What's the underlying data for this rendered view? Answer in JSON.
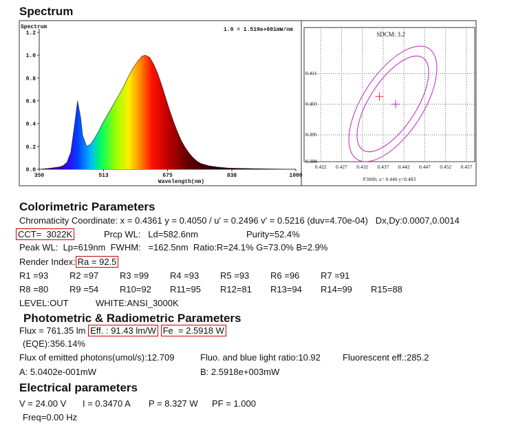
{
  "title": "Spectrum",
  "spectrum": {
    "type": "area",
    "title": "Spectrum",
    "note": "1.0 = 1.519e+001mW/nm",
    "xlabel": "Wavelength(nm)",
    "x": [
      350,
      380,
      400,
      410,
      420,
      430,
      440,
      447,
      455,
      460,
      470,
      480,
      490,
      500,
      510,
      520,
      530,
      540,
      550,
      560,
      570,
      580,
      590,
      600,
      610,
      619,
      630,
      640,
      650,
      660,
      670,
      680,
      690,
      700,
      710,
      720,
      730,
      740,
      750,
      760,
      780,
      800,
      830,
      900,
      1000
    ],
    "values": [
      0,
      0.01,
      0.02,
      0.03,
      0.06,
      0.15,
      0.4,
      0.6,
      0.45,
      0.3,
      0.2,
      0.22,
      0.27,
      0.33,
      0.4,
      0.46,
      0.52,
      0.58,
      0.64,
      0.7,
      0.77,
      0.84,
      0.9,
      0.95,
      0.99,
      1.0,
      0.98,
      0.92,
      0.84,
      0.74,
      0.63,
      0.52,
      0.42,
      0.33,
      0.25,
      0.19,
      0.14,
      0.1,
      0.07,
      0.05,
      0.03,
      0.02,
      0.01,
      0.005,
      0
    ],
    "xlim": [
      350,
      1000
    ],
    "ylim": [
      0,
      1.2
    ],
    "xticks": [
      350,
      513,
      675,
      838,
      1000
    ],
    "yticks": [
      {
        "value": 0,
        "label": "0.0"
      },
      0.2,
      0.4,
      0.6,
      0.8,
      {
        "value": 1,
        "label": "1.0"
      },
      1.2
    ]
  },
  "sdcm": {
    "type": "scatter",
    "title": "SDCM: 3.2",
    "caption": "F3000, x= 0.440 y=0.403",
    "xlim": [
      0.418,
      0.459
    ],
    "ylim": [
      0.388,
      0.423
    ],
    "xticks": [
      0.422,
      0.427,
      0.432,
      0.437,
      0.442,
      0.447,
      0.452,
      0.457
    ],
    "yticks": [
      0.388,
      0.395,
      0.403,
      0.411
    ],
    "grid": true,
    "series": [
      {
        "color": "#e8304a",
        "x": [
          0.4361
        ],
        "values": [
          0.405
        ]
      },
      {
        "color": "#c020c0",
        "x": [
          0.44
        ],
        "values": [
          0.403
        ]
      }
    ]
  },
  "colorimetric": {
    "title": "Colorimetric Parameters",
    "chromaticity": "Chromaticity Coordinate: x = 0.4361 y = 0.4050 / u' = 0.2496 v' = 0.5216 (duv=4.70e-04)   Dx,Dy:0.0007,0.0014",
    "cct": "CCT=  3022K",
    "prcp_wl": "Prcp WL:   Ld=582.6nm",
    "purity": "Purity=52.4%",
    "peak": "Peak WL:  Lp=619nm  FWHM:   =162.5nm  Ratio:R=24.1% G=73.0% B=2.9%",
    "render_index": "Render Index:",
    "ra": "Ra = 92.5",
    "r_values": [
      [
        "R1 =93",
        "R2 =97",
        "R3 =99",
        "R4 =93",
        "R5 =93",
        "R6 =96",
        "R7 =91"
      ],
      [
        "R8 =80",
        "R9 =54",
        "R10=92",
        "R11=95",
        "R12=81",
        "R13=94",
        "R14=99",
        "R15=88"
      ]
    ],
    "level": "LEVEL:OUT",
    "white": "WHITE:ANSI_3000K"
  },
  "photometric": {
    "title": "Photometric & Radiometric Parameters",
    "flux": "Flux = 761.35 lm",
    "eff": "Eff. : 91.43 lm/W",
    "fe": "Fe  = 2.5918 W",
    "eqe": "(EQE):356.14%",
    "photons": "Flux of emitted photons(umol/s):12.709",
    "fluo_ratio": "Fluo. and blue light ratio:10.92",
    "fluo_eff": "Fluorescent eff.:285.2",
    "a": "A: 5.0402e-001mW",
    "b": "B: 2.5918e+003mW"
  },
  "electrical": {
    "title": "Electrical parameters",
    "v": "V = 24.00 V",
    "i": "I = 0.3470 A",
    "p": "P = 8.327 W",
    "pf": "PF = 1.000",
    "freq": "Freq=0.00 Hz"
  }
}
